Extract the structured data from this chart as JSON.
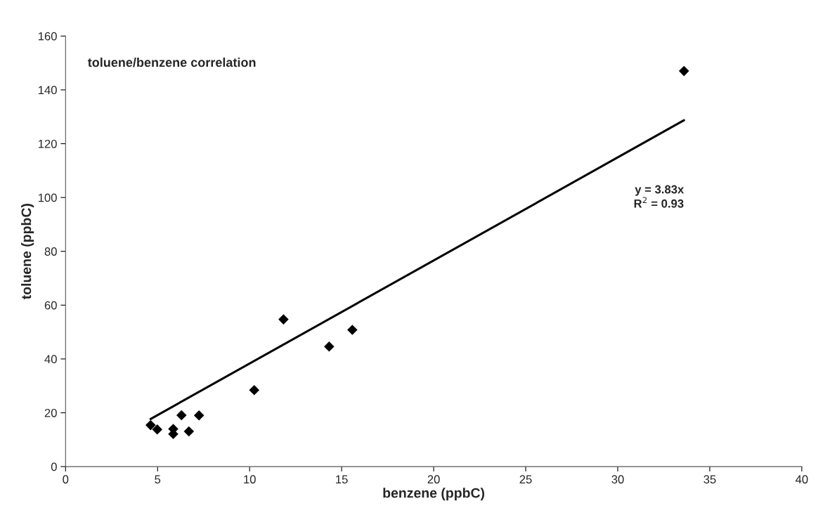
{
  "chart_data": {
    "type": "scatter",
    "title": "toluene/benzene correlation",
    "xlabel": "benzene (ppbC)",
    "ylabel": "toluene (ppbC)",
    "xlim": [
      0,
      40
    ],
    "xticks": [
      0,
      5,
      10,
      15,
      20,
      25,
      30,
      35,
      40
    ],
    "ylim": [
      0,
      160
    ],
    "yticks": [
      0,
      20,
      40,
      60,
      80,
      100,
      120,
      140,
      160
    ],
    "grid": false,
    "legend": false,
    "series": [
      {
        "color": "#000000",
        "marker": "diamond",
        "x": [
          4.62,
          4.98,
          5.85,
          5.85,
          6.3,
          6.7,
          7.25,
          10.25,
          11.84,
          14.32,
          15.58,
          33.6
        ],
        "values": [
          15.4,
          13.8,
          14.0,
          12.1,
          19.1,
          13.1,
          19.0,
          28.4,
          54.7,
          44.6,
          50.8,
          147
        ]
      },
      {
        "type": "line",
        "color": "#000000",
        "marker": "none",
        "line_style": "solid",
        "x": [
          4.62,
          33.6
        ],
        "values": [
          17.7,
          128.7
        ]
      }
    ],
    "annotations": [
      "y = 3.83x\nR$^{2}$ = 0.93"
    ]
  }
}
